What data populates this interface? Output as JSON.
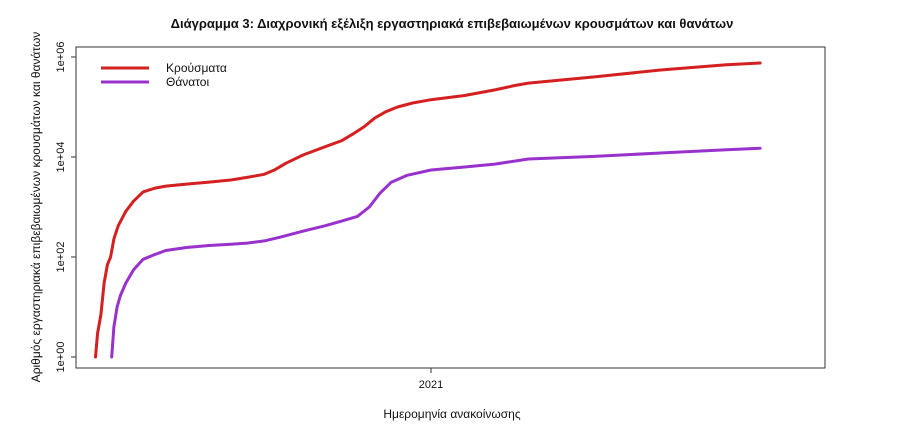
{
  "chart_data": {
    "type": "line",
    "title": "Διάγραμμα 3: Διαχρονική εξέλιξη εργαστηριακά επιβεβαιωμένων κρουσμάτων και θανάτων",
    "xlabel": "Ημερομηνία ανακοίνωσης",
    "ylabel": "Αριθμός εργαστηριακά επιβεβαιωμένων κρουσμάτων και θανάτων",
    "y_scale": "log",
    "ylim": [
      1,
      1000000
    ],
    "xlim": [
      "2020-02-08",
      "2021-12-31"
    ],
    "y_ticks": [
      {
        "value": 1,
        "label": "1e+00"
      },
      {
        "value": 100,
        "label": "1e+02"
      },
      {
        "value": 10000,
        "label": "1e+04"
      },
      {
        "value": 1000000,
        "label": "1e+06"
      }
    ],
    "x_ticks": [
      {
        "value": "2021-01-01",
        "label": "2021"
      }
    ],
    "legend_position": "top-left",
    "grid": false,
    "series": [
      {
        "name": "Κρούσματα",
        "color": "#d42020",
        "points": [
          [
            "2020-02-26",
            1
          ],
          [
            "2020-02-28",
            3
          ],
          [
            "2020-03-02",
            7
          ],
          [
            "2020-03-05",
            30
          ],
          [
            "2020-03-08",
            70
          ],
          [
            "2020-03-11",
            100
          ],
          [
            "2020-03-14",
            230
          ],
          [
            "2020-03-18",
            420
          ],
          [
            "2020-03-25",
            820
          ],
          [
            "2020-04-01",
            1300
          ],
          [
            "2020-04-10",
            2000
          ],
          [
            "2020-04-20",
            2350
          ],
          [
            "2020-05-01",
            2620
          ],
          [
            "2020-05-20",
            2870
          ],
          [
            "2020-06-10",
            3150
          ],
          [
            "2020-06-30",
            3460
          ],
          [
            "2020-07-15",
            3900
          ],
          [
            "2020-07-31",
            4500
          ],
          [
            "2020-08-10",
            5600
          ],
          [
            "2020-08-20",
            7500
          ],
          [
            "2020-09-05",
            11000
          ],
          [
            "2020-09-25",
            16000
          ],
          [
            "2020-10-10",
            21000
          ],
          [
            "2020-10-20",
            28000
          ],
          [
            "2020-10-31",
            40000
          ],
          [
            "2020-11-10",
            60000
          ],
          [
            "2020-11-20",
            80000
          ],
          [
            "2020-12-01",
            100000
          ],
          [
            "2020-12-15",
            120000
          ],
          [
            "2021-01-01",
            140000
          ],
          [
            "2021-02-01",
            170000
          ],
          [
            "2021-03-01",
            220000
          ],
          [
            "2021-03-20",
            270000
          ],
          [
            "2021-04-01",
            300000
          ],
          [
            "2021-06-01",
            400000
          ],
          [
            "2021-08-01",
            550000
          ],
          [
            "2021-10-01",
            700000
          ],
          [
            "2021-11-01",
            760000
          ]
        ]
      },
      {
        "name": "Θάνατοι",
        "color": "#9932cc",
        "points": [
          [
            "2020-03-12",
            1
          ],
          [
            "2020-03-14",
            4
          ],
          [
            "2020-03-17",
            10
          ],
          [
            "2020-03-20",
            17
          ],
          [
            "2020-03-25",
            30
          ],
          [
            "2020-04-01",
            55
          ],
          [
            "2020-04-10",
            90
          ],
          [
            "2020-04-20",
            110
          ],
          [
            "2020-05-01",
            135
          ],
          [
            "2020-05-20",
            155
          ],
          [
            "2020-06-10",
            170
          ],
          [
            "2020-06-30",
            180
          ],
          [
            "2020-07-15",
            190
          ],
          [
            "2020-07-31",
            210
          ],
          [
            "2020-08-15",
            250
          ],
          [
            "2020-09-05",
            330
          ],
          [
            "2020-09-25",
            420
          ],
          [
            "2020-10-10",
            520
          ],
          [
            "2020-10-25",
            650
          ],
          [
            "2020-11-05",
            1000
          ],
          [
            "2020-11-15",
            1900
          ],
          [
            "2020-11-25",
            3100
          ],
          [
            "2020-12-10",
            4300
          ],
          [
            "2021-01-01",
            5500
          ],
          [
            "2021-02-01",
            6300
          ],
          [
            "2021-03-01",
            7200
          ],
          [
            "2021-04-01",
            9100
          ],
          [
            "2021-06-01",
            10300
          ],
          [
            "2021-08-01",
            12000
          ],
          [
            "2021-10-01",
            14000
          ],
          [
            "2021-11-01",
            15000
          ]
        ]
      }
    ]
  }
}
